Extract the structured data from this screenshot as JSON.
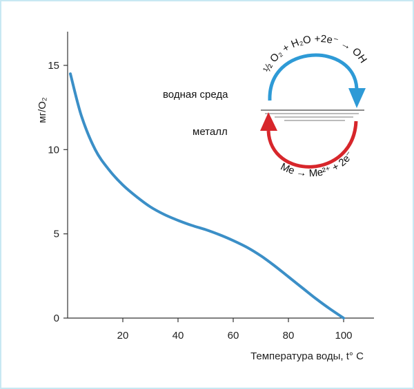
{
  "chart_data": {
    "type": "line",
    "title": "",
    "xlabel": "Температура воды, t° C",
    "ylabel": "мг/O₂",
    "xlim": [
      0,
      110
    ],
    "ylim": [
      0,
      16
    ],
    "x_ticks": [
      20,
      40,
      60,
      80,
      100
    ],
    "y_ticks": [
      0,
      5,
      10,
      15
    ],
    "grid": false,
    "series": [
      {
        "color": "#3b8fc7",
        "x": [
          1,
          5,
          10,
          15,
          20,
          25,
          30,
          35,
          40,
          45,
          50,
          55,
          60,
          65,
          70,
          75,
          80,
          85,
          90,
          95,
          100
        ],
        "y": [
          14.5,
          12.0,
          10.0,
          8.8,
          7.9,
          7.2,
          6.6,
          6.15,
          5.8,
          5.5,
          5.25,
          4.95,
          4.6,
          4.2,
          3.7,
          3.1,
          2.45,
          1.8,
          1.15,
          0.55,
          0.0
        ]
      }
    ]
  },
  "diagram": {
    "water_label": "водная среда",
    "metal_label": "металл",
    "reduction_reaction": "½ O₂ + H₂O +2e⁻ → OH",
    "oxidation_reaction": "Me → Me²⁺ + 2e⁻",
    "reduction_color": "#2e9ad6",
    "oxidation_color": "#d7262b"
  }
}
